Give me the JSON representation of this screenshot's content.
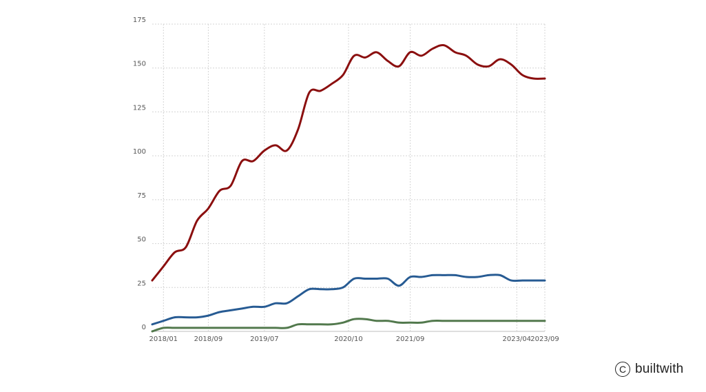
{
  "chart_data": {
    "type": "line",
    "x": [
      "2017-11",
      "2018-01",
      "2018-03",
      "2018-05",
      "2018-07",
      "2018-09",
      "2018-11",
      "2019-01",
      "2019-03",
      "2019-05",
      "2019-07",
      "2019-09",
      "2019-11",
      "2020-01",
      "2020-03",
      "2020-05",
      "2020-07",
      "2020-09",
      "2020-11",
      "2021-01",
      "2021-03",
      "2021-05",
      "2021-07",
      "2021-09",
      "2021-11",
      "2022-01",
      "2022-03",
      "2022-05",
      "2022-07",
      "2022-09",
      "2022-11",
      "2023-01",
      "2023-03",
      "2023-05",
      "2023-07",
      "2023-09"
    ],
    "series": [
      {
        "color": "#8b0f0f",
        "values": [
          29,
          37,
          45,
          48,
          63,
          70,
          80,
          83,
          97,
          97,
          103,
          106,
          103,
          115,
          136,
          137,
          141,
          146,
          157,
          156,
          159,
          154,
          151,
          159,
          157,
          161,
          163,
          159,
          157,
          152,
          151,
          155,
          152,
          146,
          144,
          144
        ]
      },
      {
        "color": "#275b93",
        "values": [
          4,
          6,
          8,
          8,
          8,
          9,
          11,
          12,
          13,
          14,
          14,
          16,
          16,
          20,
          24,
          24,
          24,
          25,
          30,
          30,
          30,
          30,
          26,
          31,
          31,
          32,
          32,
          32,
          31,
          31,
          32,
          32,
          29,
          29,
          29,
          29
        ]
      },
      {
        "color": "#52794d",
        "values": [
          0,
          2,
          2,
          2,
          2,
          2,
          2,
          2,
          2,
          2,
          2,
          2,
          2,
          4,
          4,
          4,
          4,
          5,
          7,
          7,
          6,
          6,
          5,
          5,
          5,
          6,
          6,
          6,
          6,
          6,
          6,
          6,
          6,
          6,
          6,
          6
        ]
      }
    ],
    "x_ticks": [
      "2018/01",
      "2018/09",
      "2019/07",
      "2020/10",
      "2021/09",
      "2023/04",
      "2023/09"
    ],
    "y_ticks": [
      0,
      25,
      50,
      75,
      100,
      125,
      150,
      175
    ],
    "ylim": [
      0,
      175
    ],
    "grid": true,
    "legend": "none"
  },
  "brand": {
    "symbol": "C",
    "text": "builtwith"
  }
}
